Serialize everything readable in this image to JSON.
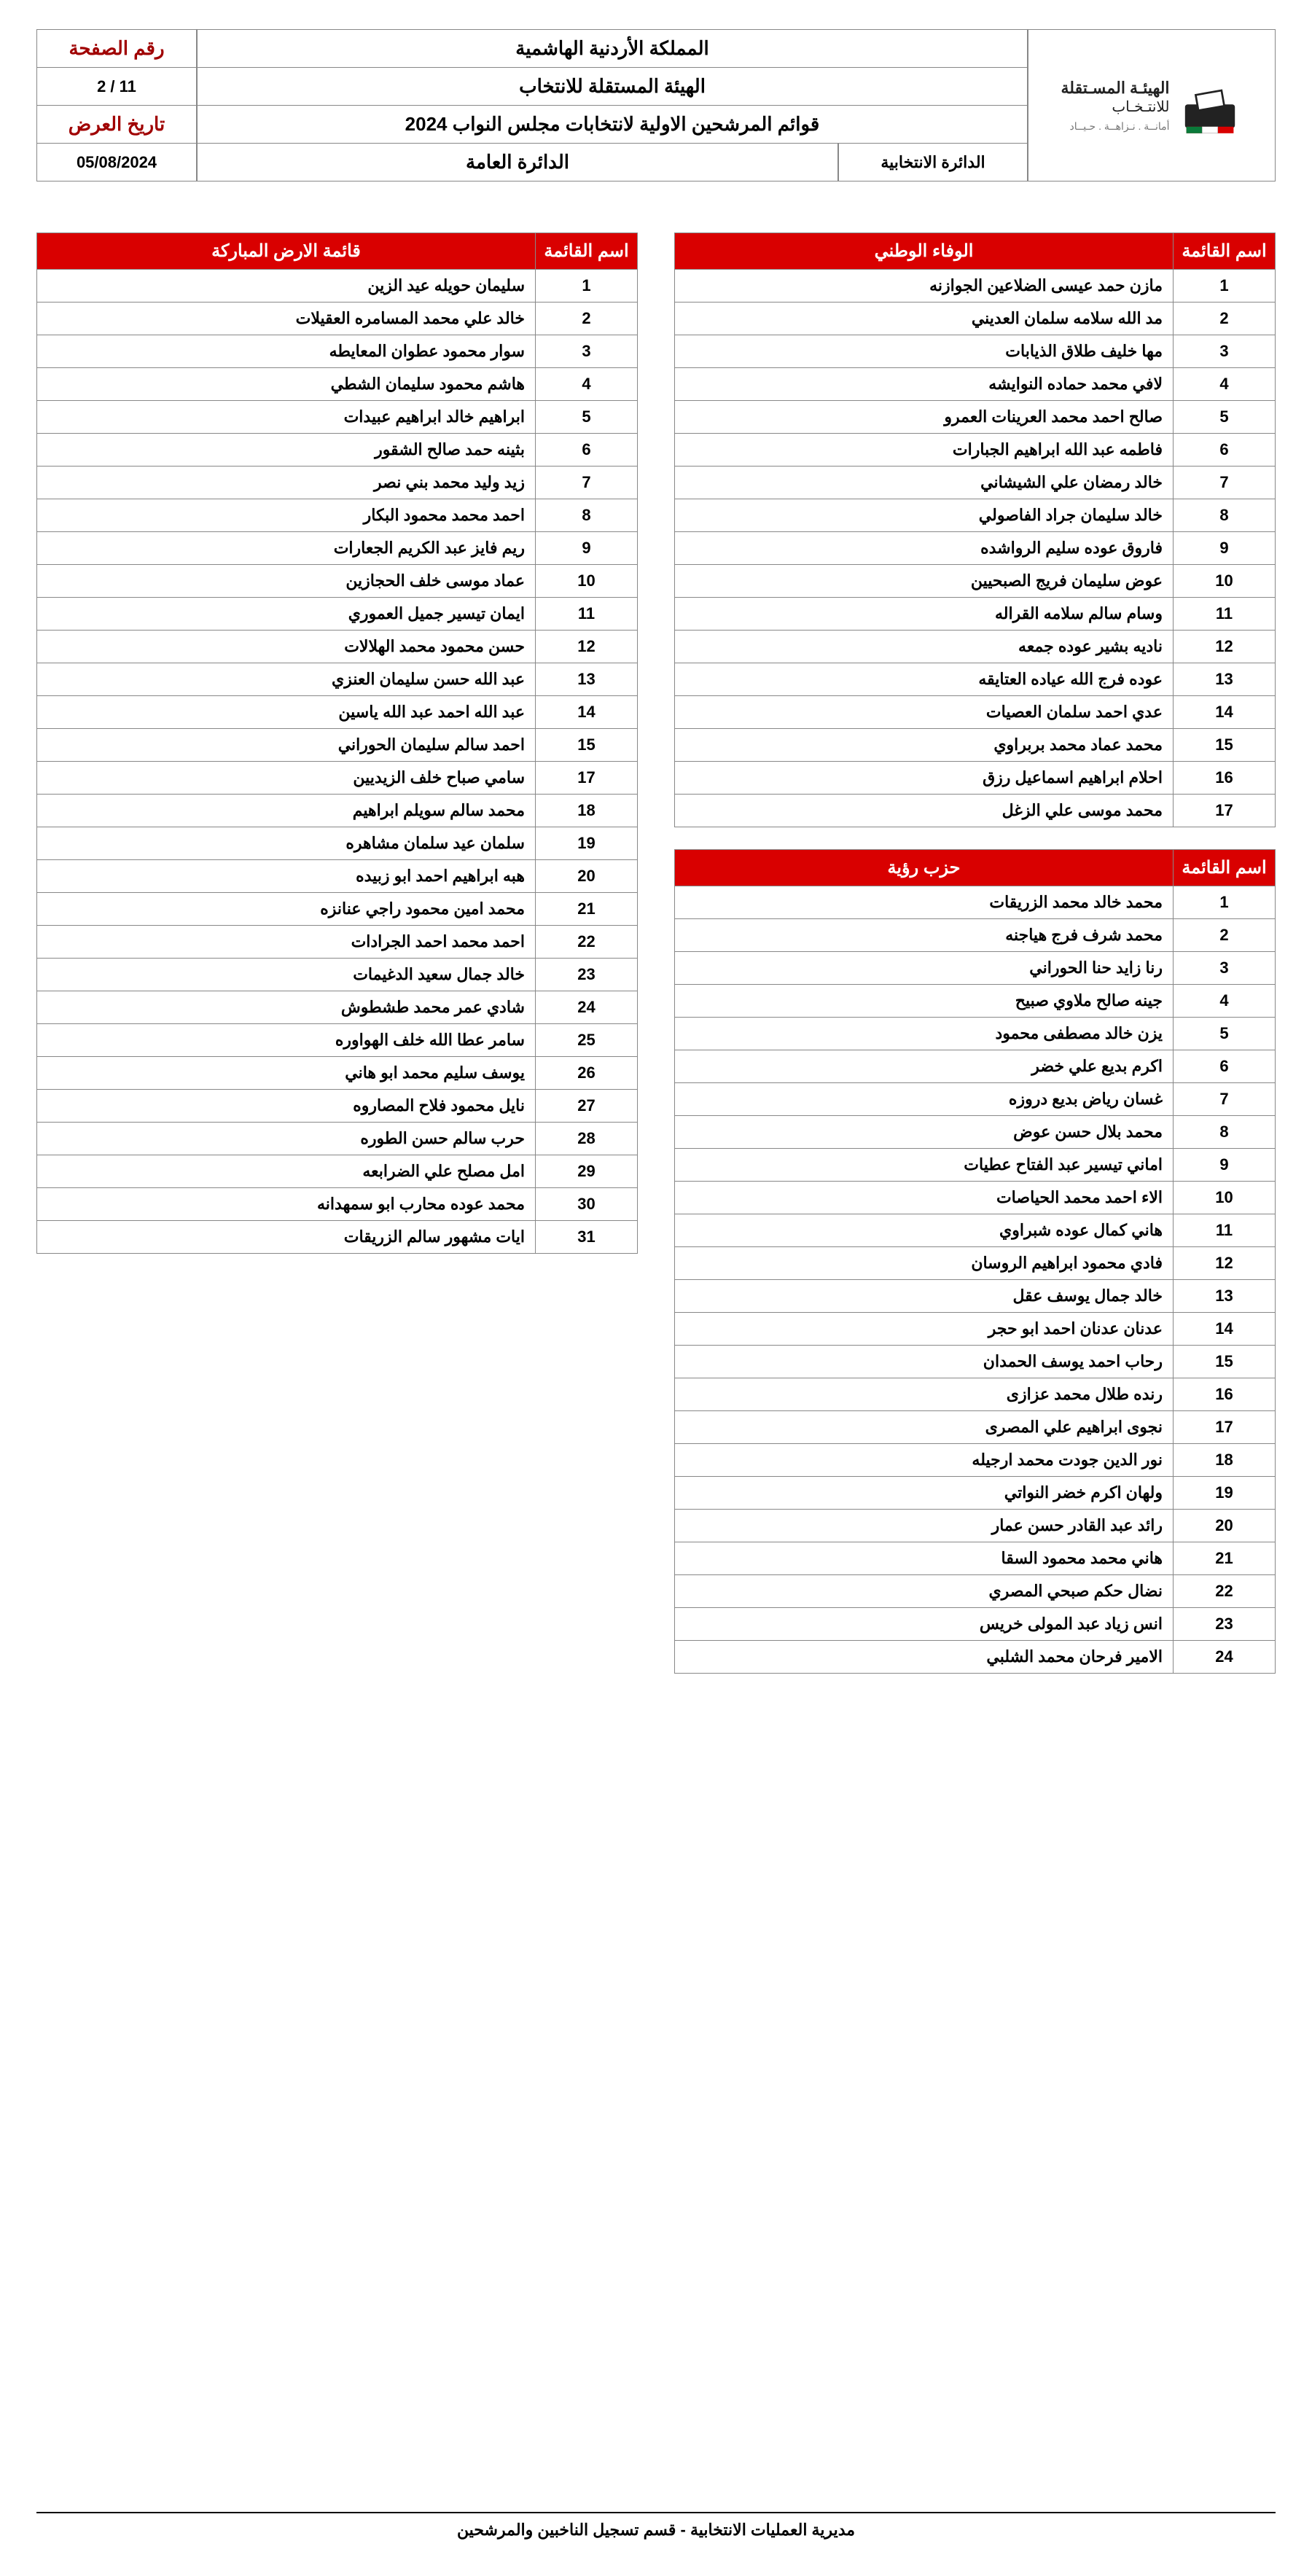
{
  "header": {
    "page_label": "رقم الصفحة",
    "page_value": "2 / 11",
    "date_label": "تاريخ العرض",
    "date_value": "05/08/2024",
    "title_kingdom": "المملكة الأردنية الهاشمية",
    "title_org": "الهيئة المستقلة للانتخاب",
    "title_doc": "قوائم المرشحين الاولية لانتخابات مجلس النواب 2024",
    "district_label": "الدائرة الانتخابية",
    "district_value": "الدائرة العامة",
    "logo_main": "الهيئـة المسـتقلة",
    "logo_sub": "للانتـخـاب",
    "logo_small": "أمانــة . نـزاهــة . حـيــاد"
  },
  "list_header_num": "اسم القائمة",
  "list1": {
    "title": "الوفاء الوطني",
    "rows": [
      {
        "n": "1",
        "name": "مازن حمد عيسى الضلاعين الجوازنه"
      },
      {
        "n": "2",
        "name": "مد الله سلامه سلمان العديني"
      },
      {
        "n": "3",
        "name": "مها خليف طلاق الذيابات"
      },
      {
        "n": "4",
        "name": "لافي محمد حماده النوايشه"
      },
      {
        "n": "5",
        "name": "صالح احمد محمد العرينات العمرو"
      },
      {
        "n": "6",
        "name": "فاطمه عبد الله ابراهيم الجبارات"
      },
      {
        "n": "7",
        "name": "خالد رمضان علي الشيشاني"
      },
      {
        "n": "8",
        "name": "خالد سليمان جراد الفاصولي"
      },
      {
        "n": "9",
        "name": "فاروق عوده سليم الرواشده"
      },
      {
        "n": "10",
        "name": "عوض سليمان فريج الصبحيين"
      },
      {
        "n": "11",
        "name": "وسام سالم سلامه القراله"
      },
      {
        "n": "12",
        "name": "ناديه بشير عوده جمعه"
      },
      {
        "n": "13",
        "name": "عوده فرج الله عياده العتايقه"
      },
      {
        "n": "14",
        "name": "عدي احمد سلمان العصيات"
      },
      {
        "n": "15",
        "name": "محمد عماد محمد بربراوي"
      },
      {
        "n": "16",
        "name": "احلام ابراهيم اسماعيل رزق"
      },
      {
        "n": "17",
        "name": "محمد موسى علي الزغل"
      }
    ]
  },
  "list2": {
    "title": "حزب رؤية",
    "rows": [
      {
        "n": "1",
        "name": "محمد خالد محمد الزريقات"
      },
      {
        "n": "2",
        "name": "محمد شرف فرج هياجنه"
      },
      {
        "n": "3",
        "name": "رنا زايد حنا الحوراني"
      },
      {
        "n": "4",
        "name": "جينه صالح ملاوي صبيح"
      },
      {
        "n": "5",
        "name": "يزن خالد مصطفى محمود"
      },
      {
        "n": "6",
        "name": "اكرم بديع علي خضر"
      },
      {
        "n": "7",
        "name": "غسان رياض بديع دروزه"
      },
      {
        "n": "8",
        "name": "محمد بلال حسن عوض"
      },
      {
        "n": "9",
        "name": "اماني تيسير عبد الفتاح عطيات"
      },
      {
        "n": "10",
        "name": "الاء احمد محمد الحياصات"
      },
      {
        "n": "11",
        "name": "هاني كمال عوده شبراوي"
      },
      {
        "n": "12",
        "name": "فادي محمود ابراهيم الروسان"
      },
      {
        "n": "13",
        "name": "خالد جمال يوسف عقل"
      },
      {
        "n": "14",
        "name": "عدنان عدنان احمد ابو حجر"
      },
      {
        "n": "15",
        "name": "رحاب احمد يوسف الحمدان"
      },
      {
        "n": "16",
        "name": "رنده طلال محمد عزازى"
      },
      {
        "n": "17",
        "name": "نجوى ابراهيم علي المصرى"
      },
      {
        "n": "18",
        "name": "نور الدين جودت محمد ارجيله"
      },
      {
        "n": "19",
        "name": "ولهان اكرم خضر النواتي"
      },
      {
        "n": "20",
        "name": "رائد عبد القادر حسن عمار"
      },
      {
        "n": "21",
        "name": "هاني محمد محمود السقا"
      },
      {
        "n": "22",
        "name": "نضال حكم صبحي المصري"
      },
      {
        "n": "23",
        "name": "انس زياد عبد المولى خريس"
      },
      {
        "n": "24",
        "name": "الامير فرحان محمد الشلبي"
      }
    ]
  },
  "list3": {
    "title": "قائمة الارض المباركة",
    "rows": [
      {
        "n": "1",
        "name": "سليمان حويله عيد الزين"
      },
      {
        "n": "2",
        "name": "خالد علي محمد المسامره العقيلات"
      },
      {
        "n": "3",
        "name": "سوار محمود عطوان المعايطه"
      },
      {
        "n": "4",
        "name": "هاشم محمود سليمان الشطي"
      },
      {
        "n": "5",
        "name": "ابراهيم خالد ابراهيم عبيدات"
      },
      {
        "n": "6",
        "name": "بثينه حمد صالح الشقور"
      },
      {
        "n": "7",
        "name": "زيد وليد محمد بني نصر"
      },
      {
        "n": "8",
        "name": "احمد محمد محمود البكار"
      },
      {
        "n": "9",
        "name": "ريم فايز عبد الكريم الجعارات"
      },
      {
        "n": "10",
        "name": "عماد موسى خلف الحجازين"
      },
      {
        "n": "11",
        "name": "ايمان تيسير جميل العموري"
      },
      {
        "n": "12",
        "name": "حسن محمود محمد الهلالات"
      },
      {
        "n": "13",
        "name": "عبد الله حسن سليمان العنزي"
      },
      {
        "n": "14",
        "name": "عبد الله احمد عبد الله ياسين"
      },
      {
        "n": "15",
        "name": "احمد سالم سليمان الحوراني"
      },
      {
        "n": "17",
        "name": "سامي صباح خلف الزيديين"
      },
      {
        "n": "18",
        "name": "محمد سالم سويلم ابراهيم"
      },
      {
        "n": "19",
        "name": "سلمان عيد سلمان مشاهره"
      },
      {
        "n": "20",
        "name": "هبه ابراهيم احمد ابو زبيده"
      },
      {
        "n": "21",
        "name": "محمد امين محمود راجي عنانزه"
      },
      {
        "n": "22",
        "name": "احمد محمد احمد الجرادات"
      },
      {
        "n": "23",
        "name": "خالد جمال سعيد الدغيمات"
      },
      {
        "n": "24",
        "name": "شادي عمر محمد طشطوش"
      },
      {
        "n": "25",
        "name": "سامر عطا الله خلف الهواوره"
      },
      {
        "n": "26",
        "name": "يوسف سليم محمد ابو هاني"
      },
      {
        "n": "27",
        "name": "نايل محمود فلاح المصاروه"
      },
      {
        "n": "28",
        "name": "حرب سالم حسن الطوره"
      },
      {
        "n": "29",
        "name": "امل مصلح علي الضرابعه"
      },
      {
        "n": "30",
        "name": "محمد عوده محارب ابو سمهدانه"
      },
      {
        "n": "31",
        "name": "ايات مشهور سالم الزريقات"
      }
    ]
  },
  "footer": "مديرية العمليات الانتخابية   -   قسم تسجيل الناخبين والمرشحين"
}
